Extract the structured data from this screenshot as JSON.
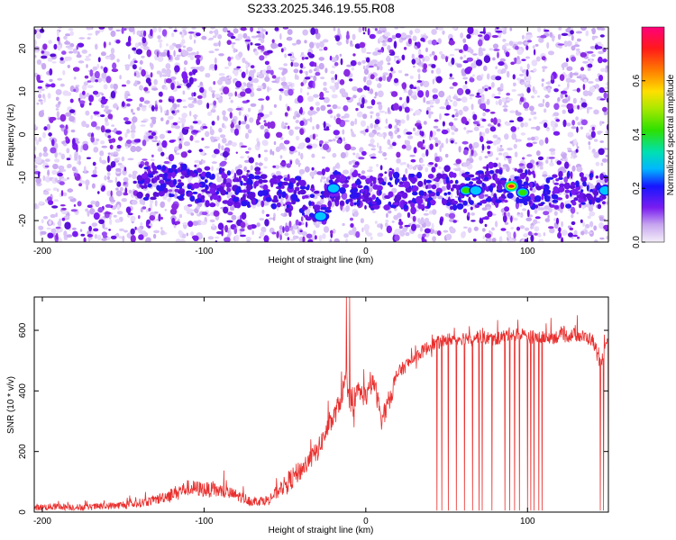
{
  "title": "S233.2025.346.19.55.R08",
  "chart_data": [
    {
      "type": "heatmap",
      "xlabel": "Height of straight line (km)",
      "ylabel": "Frequency (Hz)",
      "xlim": [
        -205,
        150
      ],
      "ylim": [
        -25,
        25
      ],
      "xticks": [
        -200,
        -100,
        0,
        100
      ],
      "yticks": [
        -20,
        -10,
        0,
        10,
        20
      ],
      "ridge": [
        [
          -130,
          -11
        ],
        [
          -105,
          -11.5
        ],
        [
          -60,
          -13.5
        ],
        [
          -40,
          -14
        ],
        [
          -28,
          -18
        ],
        [
          -20,
          -12.5
        ],
        [
          0,
          -13
        ],
        [
          40,
          -13.5
        ],
        [
          60,
          -13
        ],
        [
          90,
          -12
        ],
        [
          110,
          -13
        ],
        [
          150,
          -13
        ]
      ],
      "hotspots": [
        {
          "x": -28,
          "y": -19,
          "value": 0.25
        },
        {
          "x": -20,
          "y": -12.5,
          "value": 0.22
        },
        {
          "x": 62,
          "y": -13,
          "value": 0.3
        },
        {
          "x": 68,
          "y": -13,
          "value": 0.25
        },
        {
          "x": 90,
          "y": -12,
          "value": 0.75
        },
        {
          "x": 97,
          "y": -13.5,
          "value": 0.35
        },
        {
          "x": 148,
          "y": -13,
          "value": 0.2
        }
      ],
      "colorbar": {
        "label": "Normalized spectral amplitude",
        "range": [
          0,
          0.8
        ],
        "ticks": [
          "0.0",
          "0.2",
          "0.4",
          "0.6"
        ]
      }
    },
    {
      "type": "line",
      "xlabel": "Height of straight line (km)",
      "ylabel": "SNR (10 * v/v)",
      "xlim": [
        -205,
        150
      ],
      "ylim": [
        0,
        710
      ],
      "xticks": [
        -200,
        -100,
        0,
        100
      ],
      "yticks": [
        0,
        200,
        400,
        600
      ],
      "color": "#e8302e",
      "series": [
        {
          "x": [
            -205,
            -190,
            -175,
            -160,
            -145,
            -130,
            -120,
            -110,
            -100,
            -90,
            -80,
            -70,
            -60,
            -50,
            -40,
            -30,
            -25,
            -20,
            -15,
            -12,
            -10,
            -8,
            -5,
            0,
            5,
            10,
            15,
            20,
            30,
            40,
            45,
            50,
            60,
            70,
            80,
            90,
            100,
            110,
            120,
            130,
            140,
            145,
            150
          ],
          "y": [
            15,
            18,
            15,
            20,
            25,
            40,
            60,
            80,
            75,
            70,
            55,
            35,
            40,
            90,
            140,
            200,
            260,
            310,
            380,
            450,
            350,
            320,
            400,
            380,
            430,
            300,
            380,
            460,
            510,
            550,
            560,
            570,
            575,
            580,
            570,
            590,
            580,
            575,
            580,
            585,
            570,
            490,
            560
          ]
        }
      ],
      "spikes": [
        -12,
        -10
      ],
      "dropouts": [
        44,
        47,
        51,
        56,
        61,
        66,
        70,
        72,
        78,
        86,
        89,
        92,
        95,
        100,
        102,
        104,
        107,
        109,
        145,
        147,
        150
      ]
    }
  ]
}
